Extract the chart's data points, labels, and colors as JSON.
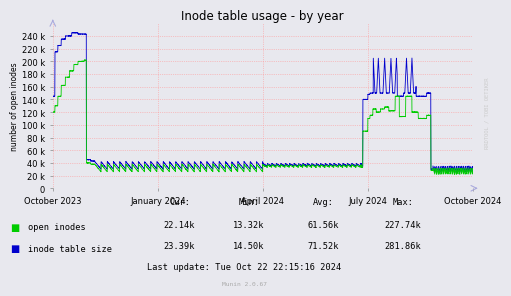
{
  "title": "Inode table usage - by year",
  "ylabel": "number of open inodes",
  "bg_color": "#e8e8ee",
  "plot_bg_color": "#e8e8ee",
  "grid_color": "#ff9999",
  "grid_style": ":",
  "ylim": [
    0,
    260000
  ],
  "yticks": [
    0,
    20000,
    40000,
    60000,
    80000,
    100000,
    120000,
    140000,
    160000,
    180000,
    200000,
    220000,
    240000
  ],
  "open_inodes_color": "#00cc00",
  "inode_table_color": "#0000cc",
  "watermark": "RRDTOOL / TOBI OETIKER",
  "munin_version": "Munin 2.0.67",
  "legend_entries": [
    "open inodes",
    "inode table size"
  ],
  "stats_header": [
    "Cur:",
    "Min:",
    "Avg:",
    "Max:"
  ],
  "open_inodes_stats": [
    "22.14k",
    "13.32k",
    "61.56k",
    "227.74k"
  ],
  "inode_table_stats": [
    "23.39k",
    "14.50k",
    "71.52k",
    "281.86k"
  ],
  "last_update": "Last update: Tue Oct 22 22:15:16 2024",
  "x_tick_labels": [
    "October 2023",
    "January 2024",
    "April 2024",
    "July 2024",
    "October 2024"
  ],
  "x_tick_positions": [
    0.0,
    0.25,
    0.5,
    0.75,
    1.0
  ]
}
